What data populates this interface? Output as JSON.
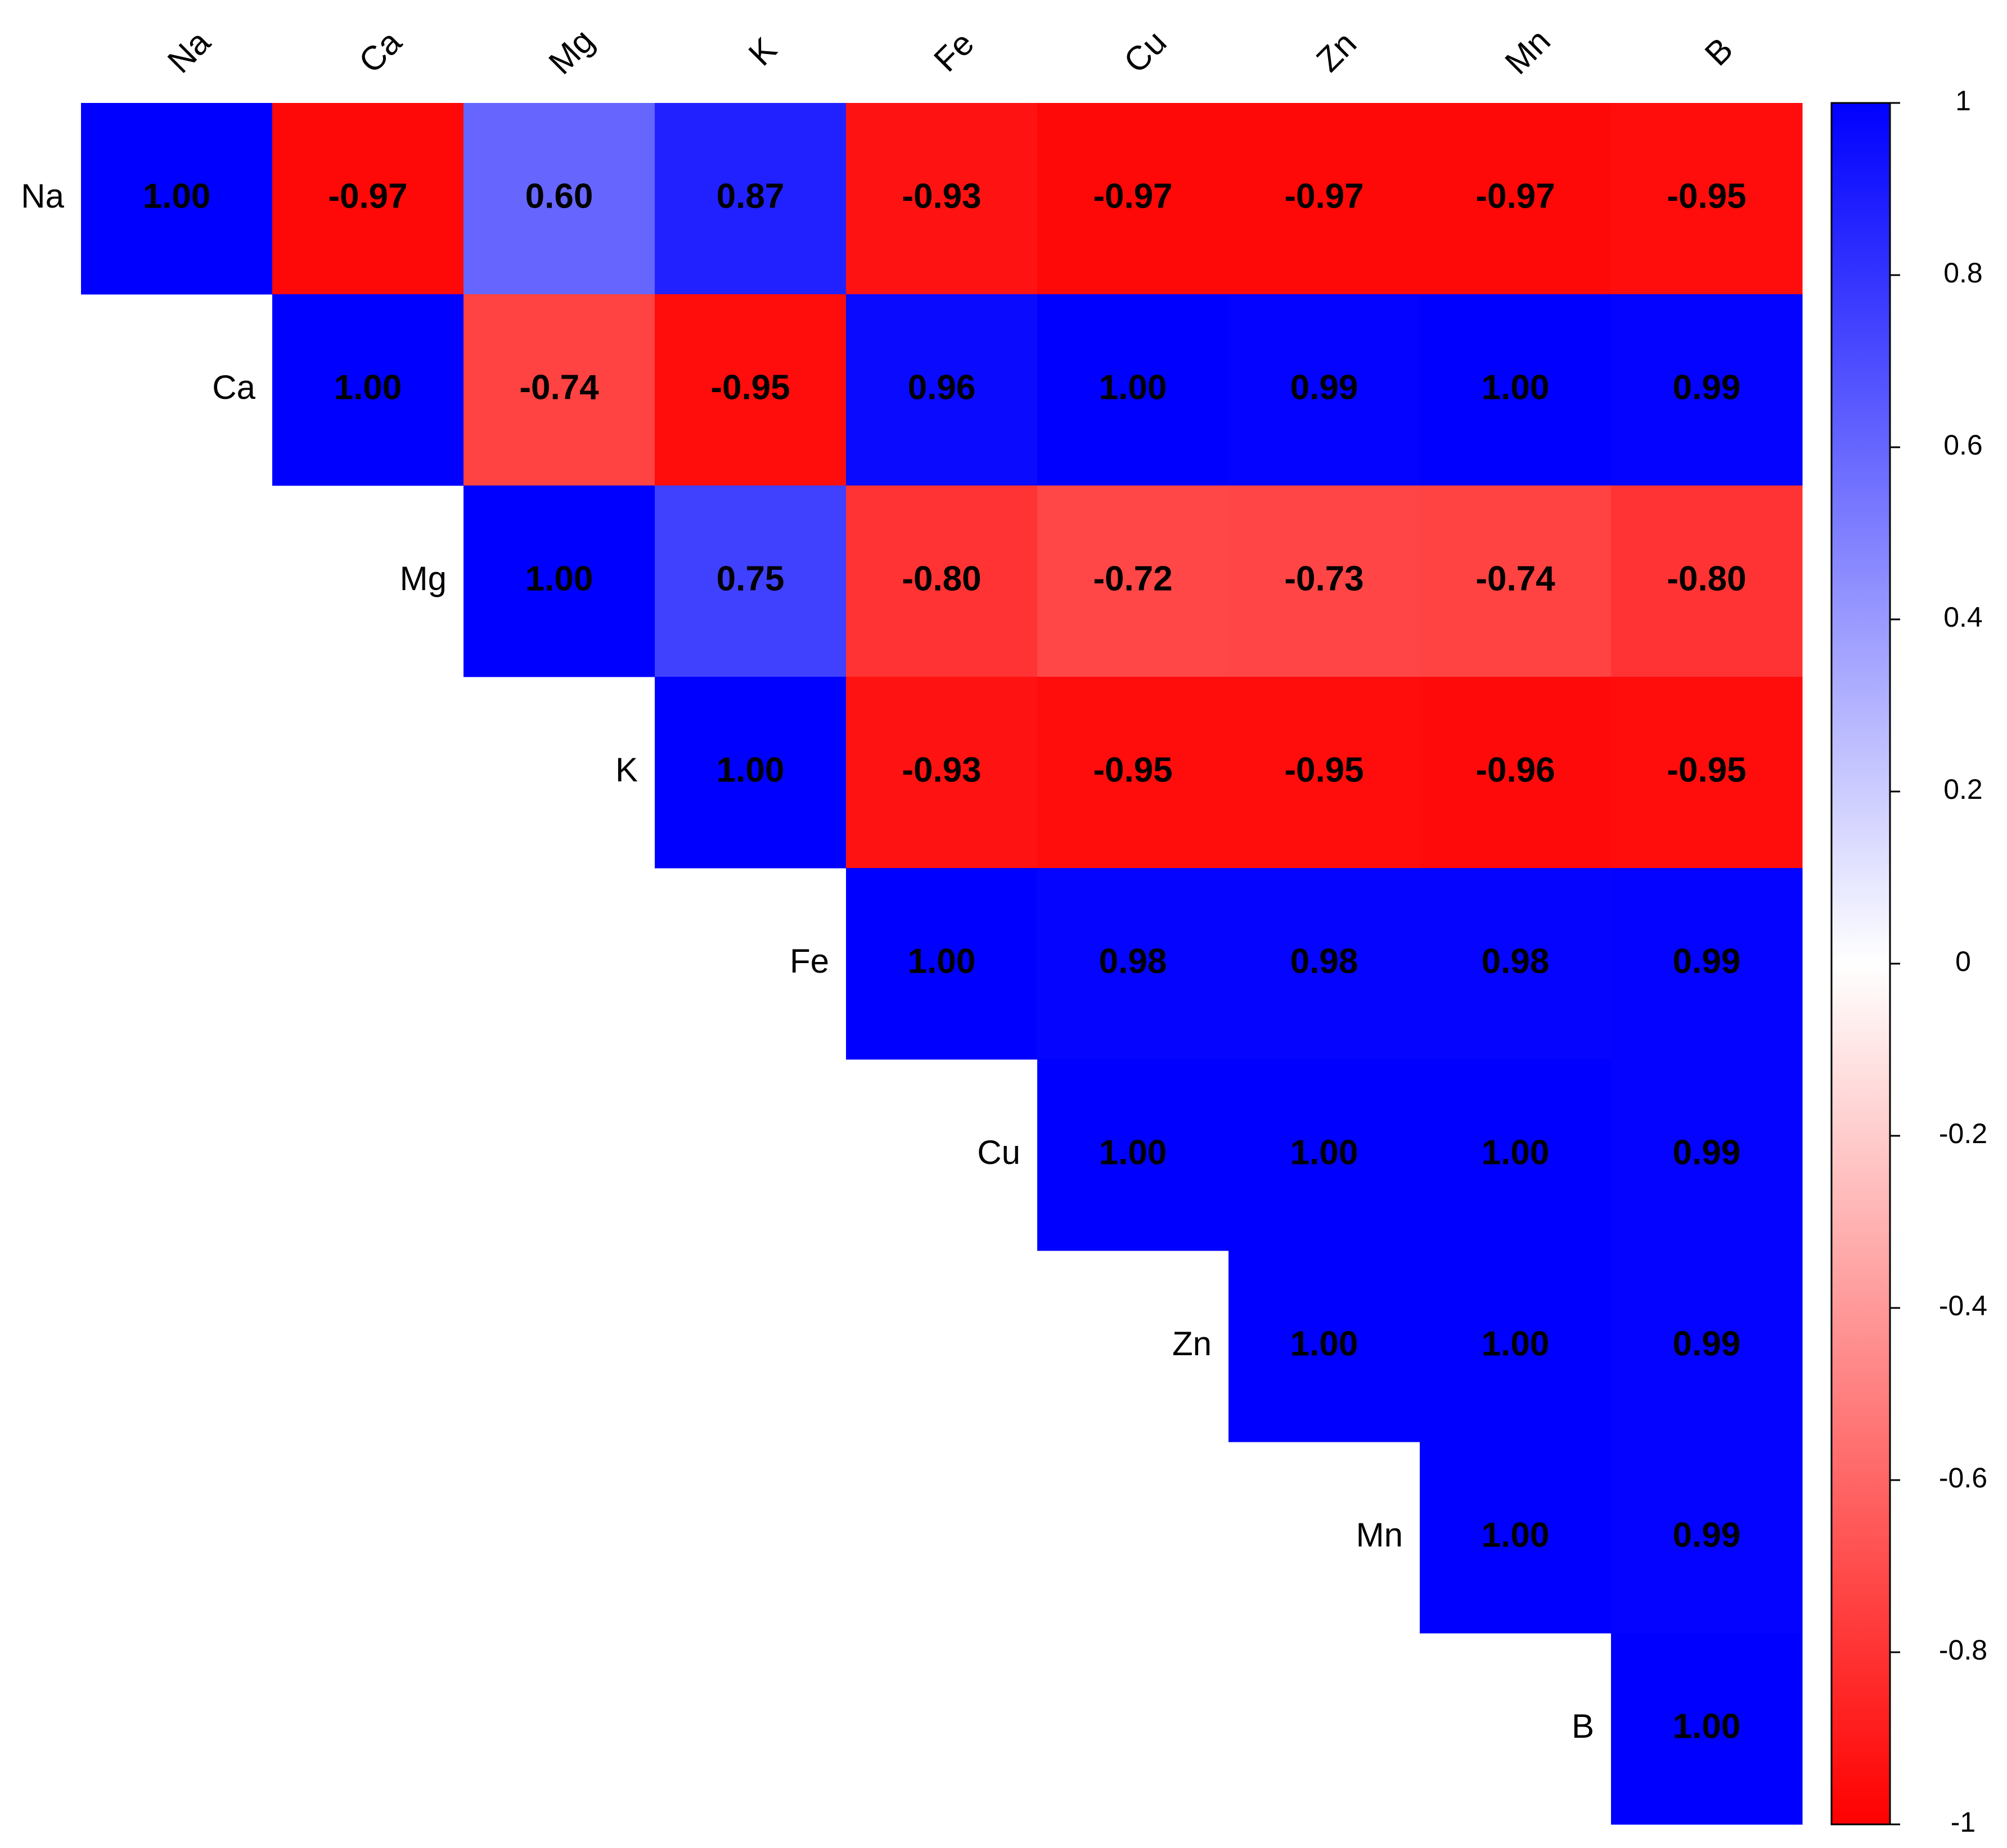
{
  "chart_data": {
    "type": "heatmap",
    "x_labels": [
      "Na",
      "Ca",
      "Mg",
      "K",
      "Fe",
      "Cu",
      "Zn",
      "Mn",
      "B"
    ],
    "y_labels": [
      "Na",
      "Ca",
      "Mg",
      "K",
      "Fe",
      "Cu",
      "Zn",
      "Mn",
      "B"
    ],
    "values": [
      [
        1.0,
        -0.97,
        0.6,
        0.87,
        -0.93,
        -0.97,
        -0.97,
        -0.97,
        -0.95
      ],
      [
        null,
        1.0,
        -0.74,
        -0.95,
        0.96,
        1.0,
        0.99,
        1.0,
        0.99
      ],
      [
        null,
        null,
        1.0,
        0.75,
        -0.8,
        -0.72,
        -0.73,
        -0.74,
        -0.8
      ],
      [
        null,
        null,
        null,
        1.0,
        -0.93,
        -0.95,
        -0.95,
        -0.96,
        -0.95
      ],
      [
        null,
        null,
        null,
        null,
        1.0,
        0.98,
        0.98,
        0.98,
        0.99
      ],
      [
        null,
        null,
        null,
        null,
        null,
        1.0,
        1.0,
        1.0,
        0.99
      ],
      [
        null,
        null,
        null,
        null,
        null,
        null,
        1.0,
        1.0,
        0.99
      ],
      [
        null,
        null,
        null,
        null,
        null,
        null,
        null,
        1.0,
        0.99
      ],
      [
        null,
        null,
        null,
        null,
        null,
        null,
        null,
        null,
        1.0
      ]
    ],
    "value_labels": [
      [
        "1.00",
        "-0.97",
        "0.60",
        "0.87",
        "-0.93",
        "-0.97",
        "-0.97",
        "-0.97",
        "-0.95"
      ],
      [
        null,
        "1.00",
        "-0.74",
        "-0.95",
        "0.96",
        "1.00",
        "0.99",
        "1.00",
        "0.99"
      ],
      [
        null,
        null,
        "1.00",
        "0.75",
        "-0.80",
        "-0.72",
        "-0.73",
        "-0.74",
        "-0.80"
      ],
      [
        null,
        null,
        null,
        "1.00",
        "-0.93",
        "-0.95",
        "-0.95",
        "-0.96",
        "-0.95"
      ],
      [
        null,
        null,
        null,
        null,
        "1.00",
        "0.98",
        "0.98",
        "0.98",
        "0.99"
      ],
      [
        null,
        null,
        null,
        null,
        null,
        "1.00",
        "1.00",
        "1.00",
        "0.99"
      ],
      [
        null,
        null,
        null,
        null,
        null,
        null,
        "1.00",
        "1.00",
        "0.99"
      ],
      [
        null,
        null,
        null,
        null,
        null,
        null,
        null,
        "1.00",
        "0.99"
      ],
      [
        null,
        null,
        null,
        null,
        null,
        null,
        null,
        null,
        "1.00"
      ]
    ],
    "colors": [
      "#ff0000",
      "#ffffff",
      "#0000ff"
    ],
    "colorbar": {
      "lim": [
        -1,
        1
      ],
      "ticks": [
        1,
        0.8,
        0.6,
        0.4,
        0.2,
        0,
        -0.2,
        -0.4,
        -0.6,
        -0.8,
        -1
      ]
    }
  }
}
